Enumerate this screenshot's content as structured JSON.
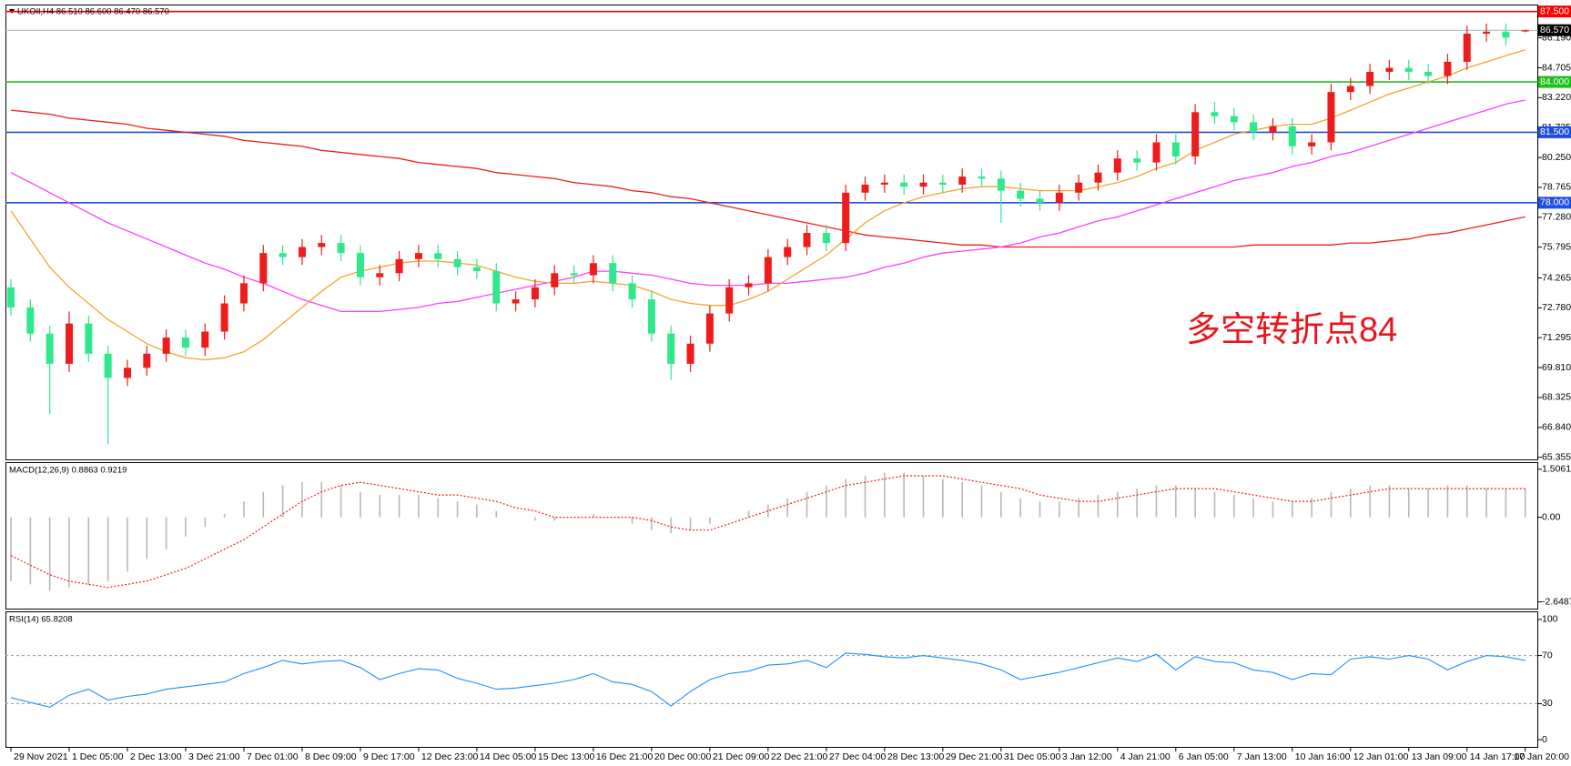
{
  "chart_data": [
    {
      "type": "candlestick",
      "title": "UKOIl,H4  86.510 86.600 86.470 86.570",
      "annotation": "多空转折点84",
      "annotation_color": "#e8161d",
      "up_color": "#ef1c1c",
      "down_color": "#2fe88c",
      "categories": [
        "29 Nov 2021",
        null,
        null,
        "1 Dec 05:00",
        null,
        null,
        "2 Dec 13:00",
        null,
        null,
        "3 Dec 21:00",
        null,
        null,
        "7 Dec 01:00",
        null,
        null,
        "8 Dec 09:00",
        null,
        null,
        "9 Dec 17:00",
        null,
        null,
        "12 Dec 23:00",
        null,
        null,
        "14 Dec 05:00",
        null,
        null,
        "15 Dec 13:00",
        null,
        null,
        "16 Dec 21:00",
        null,
        null,
        "20 Dec 00:00",
        null,
        null,
        "21 Dec 09:00",
        null,
        null,
        "22 Dec 21:00",
        null,
        null,
        "27 Dec 04:00",
        null,
        null,
        "28 Dec 13:00",
        null,
        null,
        "29 Dec 21:00",
        null,
        null,
        "31 Dec 05:00",
        null,
        null,
        "3 Jan 12:00",
        null,
        null,
        "4 Jan 21:00",
        null,
        null,
        "6 Jan 05:00",
        null,
        null,
        "7 Jan 13:00",
        null,
        null,
        "10 Jan 16:00",
        null,
        null,
        "12 Jan 01:00",
        null,
        null,
        "13 Jan 09:00",
        null,
        null,
        "14 Jan 17:00",
        null,
        null,
        "17 Jan 20:00"
      ],
      "open": [
        73.8,
        72.8,
        71.5,
        70.0,
        72.0,
        70.5,
        69.3,
        69.8,
        70.5,
        71.3,
        70.8,
        71.6,
        73.0,
        74.0,
        75.5,
        75.3,
        75.8,
        76.0,
        75.5,
        74.3,
        74.5,
        75.2,
        75.5,
        75.2,
        74.8,
        74.6,
        73.0,
        73.2,
        73.8,
        74.5,
        74.4,
        75.0,
        74.0,
        73.2,
        71.5,
        70.0,
        71.0,
        72.5,
        73.8,
        74.0,
        75.3,
        75.8,
        76.5,
        76.0,
        78.5,
        78.9,
        79.0,
        78.8,
        79.0,
        78.9,
        79.3,
        79.2,
        78.6,
        78.2,
        78.0,
        78.5,
        79.0,
        79.5,
        80.2,
        80.0,
        81.0,
        80.3,
        82.5,
        82.3,
        82.0,
        81.5,
        81.8,
        80.8,
        81.0,
        83.5,
        83.8,
        84.5,
        84.7,
        84.5,
        84.3,
        85.0,
        86.4,
        86.5,
        86.51
      ],
      "high": [
        74.2,
        73.2,
        71.9,
        72.6,
        72.4,
        70.9,
        70.2,
        70.9,
        71.7,
        71.7,
        72.0,
        73.4,
        74.4,
        75.9,
        75.9,
        76.2,
        76.4,
        76.4,
        75.9,
        74.9,
        75.6,
        75.9,
        75.9,
        75.6,
        75.2,
        75.0,
        73.6,
        74.2,
        74.9,
        74.9,
        75.4,
        75.4,
        74.4,
        73.6,
        71.9,
        71.4,
        72.9,
        74.2,
        74.4,
        75.7,
        76.2,
        76.9,
        76.9,
        78.9,
        79.3,
        79.4,
        79.4,
        79.4,
        79.4,
        79.7,
        79.7,
        79.6,
        79.0,
        78.6,
        78.9,
        79.4,
        79.9,
        80.6,
        80.6,
        81.4,
        81.4,
        82.9,
        83.0,
        82.7,
        82.4,
        82.2,
        82.2,
        81.4,
        83.9,
        84.2,
        84.9,
        85.1,
        85.1,
        84.9,
        85.4,
        86.8,
        86.9,
        86.9,
        86.6
      ],
      "low": [
        72.4,
        71.1,
        67.5,
        69.6,
        70.1,
        66.0,
        68.9,
        69.4,
        70.1,
        70.4,
        70.4,
        71.2,
        72.6,
        73.6,
        74.9,
        74.9,
        75.4,
        75.1,
        73.9,
        73.9,
        74.1,
        74.8,
        74.8,
        74.4,
        74.2,
        72.6,
        72.6,
        72.8,
        73.4,
        74.0,
        74.0,
        73.6,
        72.8,
        71.1,
        69.2,
        69.6,
        70.6,
        72.1,
        73.4,
        73.6,
        74.9,
        75.4,
        75.6,
        75.6,
        78.1,
        78.5,
        78.4,
        78.4,
        78.5,
        78.5,
        78.8,
        77.0,
        77.8,
        77.6,
        77.6,
        78.1,
        78.6,
        79.1,
        79.6,
        79.6,
        79.9,
        79.9,
        81.9,
        81.6,
        81.1,
        81.1,
        80.4,
        80.4,
        80.6,
        83.1,
        83.4,
        84.1,
        84.1,
        83.9,
        83.9,
        84.6,
        86.0,
        85.8,
        86.47
      ],
      "close": [
        72.8,
        71.5,
        70.0,
        72.0,
        70.5,
        69.3,
        69.8,
        70.5,
        71.3,
        70.8,
        71.6,
        73.0,
        74.0,
        75.5,
        75.3,
        75.8,
        76.0,
        75.5,
        74.3,
        74.5,
        75.2,
        75.5,
        75.2,
        74.8,
        74.6,
        73.0,
        73.2,
        73.8,
        74.5,
        74.4,
        75.0,
        74.0,
        73.2,
        71.5,
        70.0,
        71.0,
        72.5,
        73.8,
        74.0,
        75.3,
        75.8,
        76.5,
        76.0,
        78.5,
        78.9,
        79.0,
        78.8,
        79.0,
        78.9,
        79.3,
        79.2,
        78.6,
        78.2,
        78.0,
        78.5,
        79.0,
        79.5,
        80.2,
        80.0,
        81.0,
        80.3,
        82.5,
        82.3,
        82.0,
        81.5,
        81.8,
        80.8,
        81.0,
        83.5,
        83.8,
        84.5,
        84.7,
        84.5,
        84.3,
        85.0,
        86.4,
        86.5,
        86.2,
        86.57
      ],
      "lines": [
        {
          "color": "#e8201a",
          "values": [
            82.6,
            82.5,
            82.4,
            82.2,
            82.1,
            82.0,
            81.9,
            81.7,
            81.6,
            81.5,
            81.4,
            81.3,
            81.1,
            81.0,
            80.9,
            80.8,
            80.6,
            80.5,
            80.4,
            80.3,
            80.2,
            80.0,
            79.9,
            79.8,
            79.7,
            79.5,
            79.4,
            79.3,
            79.2,
            79.0,
            78.9,
            78.8,
            78.6,
            78.5,
            78.3,
            78.2,
            78.0,
            77.8,
            77.6,
            77.4,
            77.2,
            77.0,
            76.8,
            76.6,
            76.4,
            76.3,
            76.2,
            76.1,
            76.0,
            75.9,
            75.9,
            75.8,
            75.8,
            75.8,
            75.8,
            75.8,
            75.8,
            75.8,
            75.8,
            75.8,
            75.8,
            75.8,
            75.8,
            75.8,
            75.9,
            75.9,
            75.9,
            75.9,
            75.9,
            76.0,
            76.0,
            76.1,
            76.2,
            76.4,
            76.5,
            76.7,
            76.9,
            77.1,
            77.3
          ]
        },
        {
          "color": "#ff3cff",
          "values": [
            79.5,
            79.0,
            78.5,
            78.0,
            77.5,
            77.0,
            76.6,
            76.2,
            75.8,
            75.4,
            75.0,
            74.7,
            74.3,
            74.0,
            73.6,
            73.2,
            72.9,
            72.6,
            72.6,
            72.6,
            72.7,
            72.8,
            73.0,
            73.1,
            73.3,
            73.5,
            73.7,
            73.9,
            74.1,
            74.3,
            74.6,
            74.6,
            74.5,
            74.4,
            74.2,
            74.0,
            73.9,
            73.9,
            73.9,
            74.0,
            74.0,
            74.1,
            74.2,
            74.3,
            74.5,
            74.8,
            75.0,
            75.3,
            75.5,
            75.6,
            75.7,
            75.8,
            76.0,
            76.3,
            76.5,
            76.8,
            77.1,
            77.3,
            77.6,
            77.9,
            78.2,
            78.5,
            78.8,
            79.1,
            79.3,
            79.5,
            79.8,
            80.0,
            80.3,
            80.5,
            80.8,
            81.1,
            81.4,
            81.7,
            82.0,
            82.3,
            82.6,
            82.9,
            83.1
          ]
        },
        {
          "color": "#f2a52c",
          "values": [
            77.6,
            76.2,
            74.8,
            73.8,
            73.0,
            72.2,
            71.6,
            71.0,
            70.6,
            70.3,
            70.2,
            70.3,
            70.6,
            71.2,
            72.0,
            72.8,
            73.6,
            74.3,
            74.6,
            74.8,
            75.0,
            75.1,
            75.1,
            75.0,
            74.9,
            74.6,
            74.3,
            74.1,
            74.0,
            74.0,
            74.1,
            74.0,
            73.9,
            73.6,
            73.2,
            73.0,
            72.9,
            72.9,
            73.2,
            73.6,
            74.2,
            74.8,
            75.4,
            76.2,
            77.0,
            77.6,
            78.0,
            78.3,
            78.5,
            78.7,
            78.8,
            78.8,
            78.7,
            78.6,
            78.6,
            78.6,
            78.8,
            79.0,
            79.3,
            79.7,
            80.0,
            80.6,
            81.0,
            81.4,
            81.6,
            81.8,
            81.9,
            81.9,
            82.2,
            82.6,
            83.0,
            83.4,
            83.7,
            84.0,
            84.3,
            84.7,
            85.0,
            85.3,
            85.6
          ]
        }
      ],
      "levels": [
        {
          "value": 87.5,
          "label": "87.500",
          "color": "#ff0000"
        },
        {
          "value": 84.0,
          "label": "84.000",
          "color": "#1fbf1f"
        },
        {
          "value": 81.5,
          "label": "81.500",
          "color": "#1f4fe0"
        },
        {
          "value": 78.0,
          "label": "78.000",
          "color": "#1f4fe0"
        }
      ],
      "price": {
        "value": 86.57,
        "label": "86.570"
      },
      "ylim": [
        65.25,
        87.8
      ],
      "yticks": [
        {
          "value": 86.19,
          "label": "86.190"
        },
        {
          "value": 84.705,
          "label": "84.705"
        },
        {
          "value": 83.22,
          "label": "83.220"
        },
        {
          "value": 81.735,
          "label": "81.735"
        },
        {
          "value": 80.25,
          "label": "80.250"
        },
        {
          "value": 78.765,
          "label": "78.765"
        },
        {
          "value": 77.28,
          "label": "77.280"
        },
        {
          "value": 75.795,
          "label": "75.795"
        },
        {
          "value": 74.265,
          "label": "74.265"
        },
        {
          "value": 72.78,
          "label": "72.780"
        },
        {
          "value": 71.295,
          "label": "71.295"
        },
        {
          "value": 69.81,
          "label": "69.810"
        },
        {
          "value": 68.325,
          "label": "68.325"
        },
        {
          "value": 66.84,
          "label": "66.840"
        },
        {
          "value": 65.355,
          "label": "65.355"
        }
      ]
    },
    {
      "type": "macd",
      "title": "MACD(12,26,9) 0.8863 0.9219",
      "hist_color": "#b8b8b8",
      "signal_color": "#e8201a",
      "values": [
        -2.0,
        -2.1,
        -2.3,
        -2.2,
        -2.1,
        -2.0,
        -1.7,
        -1.3,
        -1.0,
        -0.6,
        -0.3,
        0.1,
        0.5,
        0.8,
        1.0,
        1.1,
        1.1,
        1.0,
        0.8,
        0.7,
        0.7,
        0.7,
        0.6,
        0.5,
        0.4,
        0.2,
        0.0,
        -0.1,
        -0.1,
        0.0,
        0.1,
        0.0,
        -0.2,
        -0.4,
        -0.5,
        -0.4,
        -0.2,
        0.0,
        0.2,
        0.4,
        0.6,
        0.8,
        1.0,
        1.2,
        1.3,
        1.4,
        1.4,
        1.3,
        1.2,
        1.1,
        1.0,
        0.8,
        0.6,
        0.5,
        0.5,
        0.6,
        0.7,
        0.8,
        0.9,
        1.0,
        1.0,
        0.9,
        0.8,
        0.7,
        0.6,
        0.5,
        0.5,
        0.6,
        0.8,
        0.9,
        1.0,
        1.0,
        0.9,
        0.9,
        1.0,
        1.0,
        0.9,
        0.9,
        0.9
      ],
      "signal": [
        -1.2,
        -1.5,
        -1.8,
        -2.0,
        -2.1,
        -2.2,
        -2.1,
        -2.0,
        -1.8,
        -1.6,
        -1.3,
        -1.0,
        -0.7,
        -0.3,
        0.1,
        0.5,
        0.8,
        1.0,
        1.1,
        1.0,
        0.9,
        0.8,
        0.7,
        0.7,
        0.6,
        0.5,
        0.3,
        0.2,
        0.0,
        0.0,
        0.0,
        0.0,
        0.0,
        -0.1,
        -0.3,
        -0.4,
        -0.4,
        -0.2,
        0.0,
        0.2,
        0.4,
        0.6,
        0.8,
        1.0,
        1.1,
        1.2,
        1.3,
        1.3,
        1.3,
        1.2,
        1.1,
        1.0,
        0.9,
        0.7,
        0.6,
        0.5,
        0.5,
        0.6,
        0.7,
        0.8,
        0.9,
        0.9,
        0.9,
        0.8,
        0.7,
        0.6,
        0.5,
        0.5,
        0.6,
        0.7,
        0.8,
        0.9,
        0.9,
        0.9,
        0.9,
        0.9,
        0.9,
        0.9,
        0.9
      ],
      "ylim": [
        -2.86,
        1.7
      ],
      "yticks": [
        1.5061,
        {
          "value": 0,
          "label": "0.00"
        },
        -2.6487
      ]
    },
    {
      "type": "rsi",
      "title": "RSI(14) 65.8208",
      "color": "#1e8fff",
      "values": [
        35,
        31,
        27,
        37,
        42,
        33,
        36,
        38,
        42,
        44,
        46,
        48,
        55,
        60,
        66,
        63,
        65,
        66,
        60,
        50,
        55,
        59,
        58,
        51,
        47,
        42,
        43,
        45,
        47,
        50,
        55,
        48,
        46,
        40,
        28,
        40,
        50,
        55,
        57,
        62,
        63,
        66,
        60,
        72,
        71,
        69,
        68,
        70,
        68,
        66,
        63,
        58,
        50,
        53,
        56,
        60,
        64,
        68,
        65,
        71,
        58,
        69,
        65,
        64,
        58,
        56,
        50,
        55,
        54,
        67,
        69,
        67,
        70,
        67,
        58,
        65,
        70,
        69,
        66
      ],
      "levels": [
        70,
        30
      ],
      "ylim": [
        -6,
        106
      ],
      "yticks": [
        100,
        70,
        30,
        0
      ]
    }
  ]
}
